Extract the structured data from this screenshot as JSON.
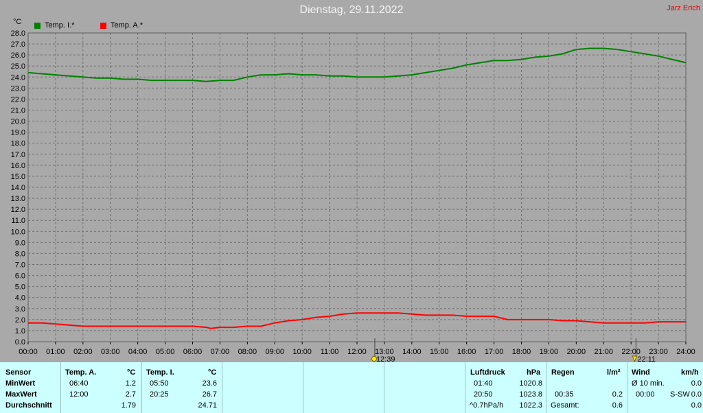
{
  "header": {
    "title": "Dienstag, 29.11.2022",
    "author": "Jarz Erich",
    "unit": "°C"
  },
  "legend": [
    {
      "label": "Temp. I.*",
      "color": "#008000"
    },
    {
      "label": "Temp. A.*",
      "color": "#ff0000"
    }
  ],
  "chart_data": {
    "type": "line",
    "ylabel": "°C",
    "ylim": [
      0,
      28
    ],
    "ytick_step": 1,
    "xlim": [
      0,
      24
    ],
    "x_ticks": [
      "00:00",
      "01:00",
      "02:00",
      "03:00",
      "04:00",
      "05:00",
      "06:00",
      "07:00",
      "08:00",
      "09:00",
      "10:00",
      "11:00",
      "12:00",
      "13:00",
      "14:00",
      "15:00",
      "16:00",
      "17:00",
      "18:00",
      "19:00",
      "20:00",
      "21:00",
      "22:00",
      "23:00",
      "24:00"
    ],
    "grid": true,
    "background": "#a9a9a9",
    "series": [
      {
        "name": "Temp. I.*",
        "color": "#008000",
        "x": [
          0,
          0.5,
          1,
          1.5,
          2,
          2.5,
          3,
          3.5,
          4,
          4.5,
          5,
          5.5,
          6,
          6.5,
          7,
          7.5,
          8,
          8.5,
          9,
          9.5,
          10,
          10.5,
          11,
          11.5,
          12,
          12.5,
          13,
          13.5,
          14,
          14.5,
          15,
          15.5,
          16,
          16.5,
          17,
          17.5,
          18,
          18.5,
          19,
          19.5,
          20,
          20.5,
          21,
          21.5,
          22,
          22.5,
          23,
          23.5,
          24
        ],
        "y": [
          24.4,
          24.3,
          24.2,
          24.1,
          24.0,
          23.9,
          23.9,
          23.8,
          23.8,
          23.7,
          23.7,
          23.7,
          23.7,
          23.6,
          23.7,
          23.7,
          24.0,
          24.2,
          24.2,
          24.3,
          24.2,
          24.2,
          24.1,
          24.1,
          24.0,
          24.0,
          24.0,
          24.1,
          24.2,
          24.4,
          24.6,
          24.8,
          25.1,
          25.3,
          25.5,
          25.5,
          25.6,
          25.8,
          25.9,
          26.1,
          26.5,
          26.6,
          26.6,
          26.5,
          26.3,
          26.1,
          25.9,
          25.6,
          25.3
        ]
      },
      {
        "name": "Temp. A.*",
        "color": "#ff0000",
        "x": [
          0,
          0.5,
          1,
          1.5,
          2,
          2.5,
          3,
          3.5,
          4,
          4.5,
          5,
          5.5,
          6,
          6.5,
          6.67,
          7,
          7.5,
          8,
          8.5,
          9,
          9.5,
          10,
          10.5,
          11,
          11.5,
          12,
          12.5,
          13,
          13.5,
          14,
          14.5,
          15,
          15.5,
          16,
          16.5,
          17,
          17.5,
          18,
          18.5,
          19,
          19.5,
          20,
          20.5,
          21,
          21.5,
          22,
          22.5,
          23,
          23.5,
          24
        ],
        "y": [
          1.7,
          1.7,
          1.6,
          1.5,
          1.4,
          1.4,
          1.4,
          1.4,
          1.4,
          1.4,
          1.4,
          1.4,
          1.4,
          1.3,
          1.2,
          1.3,
          1.3,
          1.4,
          1.4,
          1.7,
          1.9,
          2.0,
          2.2,
          2.3,
          2.5,
          2.6,
          2.6,
          2.6,
          2.6,
          2.5,
          2.4,
          2.4,
          2.4,
          2.3,
          2.3,
          2.3,
          2.0,
          2.0,
          2.0,
          2.0,
          1.9,
          1.9,
          1.8,
          1.7,
          1.7,
          1.7,
          1.7,
          1.8,
          1.8,
          1.8
        ]
      }
    ],
    "markers": [
      {
        "x": 12.65,
        "label": "12:39",
        "kind": "sun"
      },
      {
        "x": 22.18,
        "label": "22:11",
        "kind": "moon"
      }
    ]
  },
  "table": {
    "sensor": {
      "header": "Sensor",
      "rows": [
        "MinWert",
        "MaxWert",
        "Durchschnitt"
      ]
    },
    "temp_a": {
      "header": "Temp. A.",
      "unit": "°C",
      "min_time": "06:40",
      "min": "1.2",
      "max_time": "12:00",
      "max": "2.7",
      "avg": "1.79"
    },
    "temp_i": {
      "header": "Temp. I.",
      "unit": "°C",
      "min_time": "05:50",
      "min": "23.6",
      "max_time": "20:25",
      "max": "26.7",
      "avg": "24.71"
    },
    "pressure": {
      "header": "Luftdruck",
      "unit": "hPa",
      "min_time": "01:40",
      "min": "1020.8",
      "max_time": "20:50",
      "max": "1023.8",
      "trend_label": "^0.7hPa/h",
      "avg": "1022.3"
    },
    "rain": {
      "header": "Regen",
      "unit": "l/m²",
      "max_time": "00:35",
      "max": "0.2",
      "total_label": "Gesamt:",
      "total": "0.6"
    },
    "wind": {
      "header": "Wind",
      "unit": "km/h",
      "avg_label": "Ø 10 min.",
      "avg": "0.0",
      "max_time": "00:00",
      "dir": "S-SW",
      "max": "0.0",
      "avg_row3": "0.0"
    }
  }
}
